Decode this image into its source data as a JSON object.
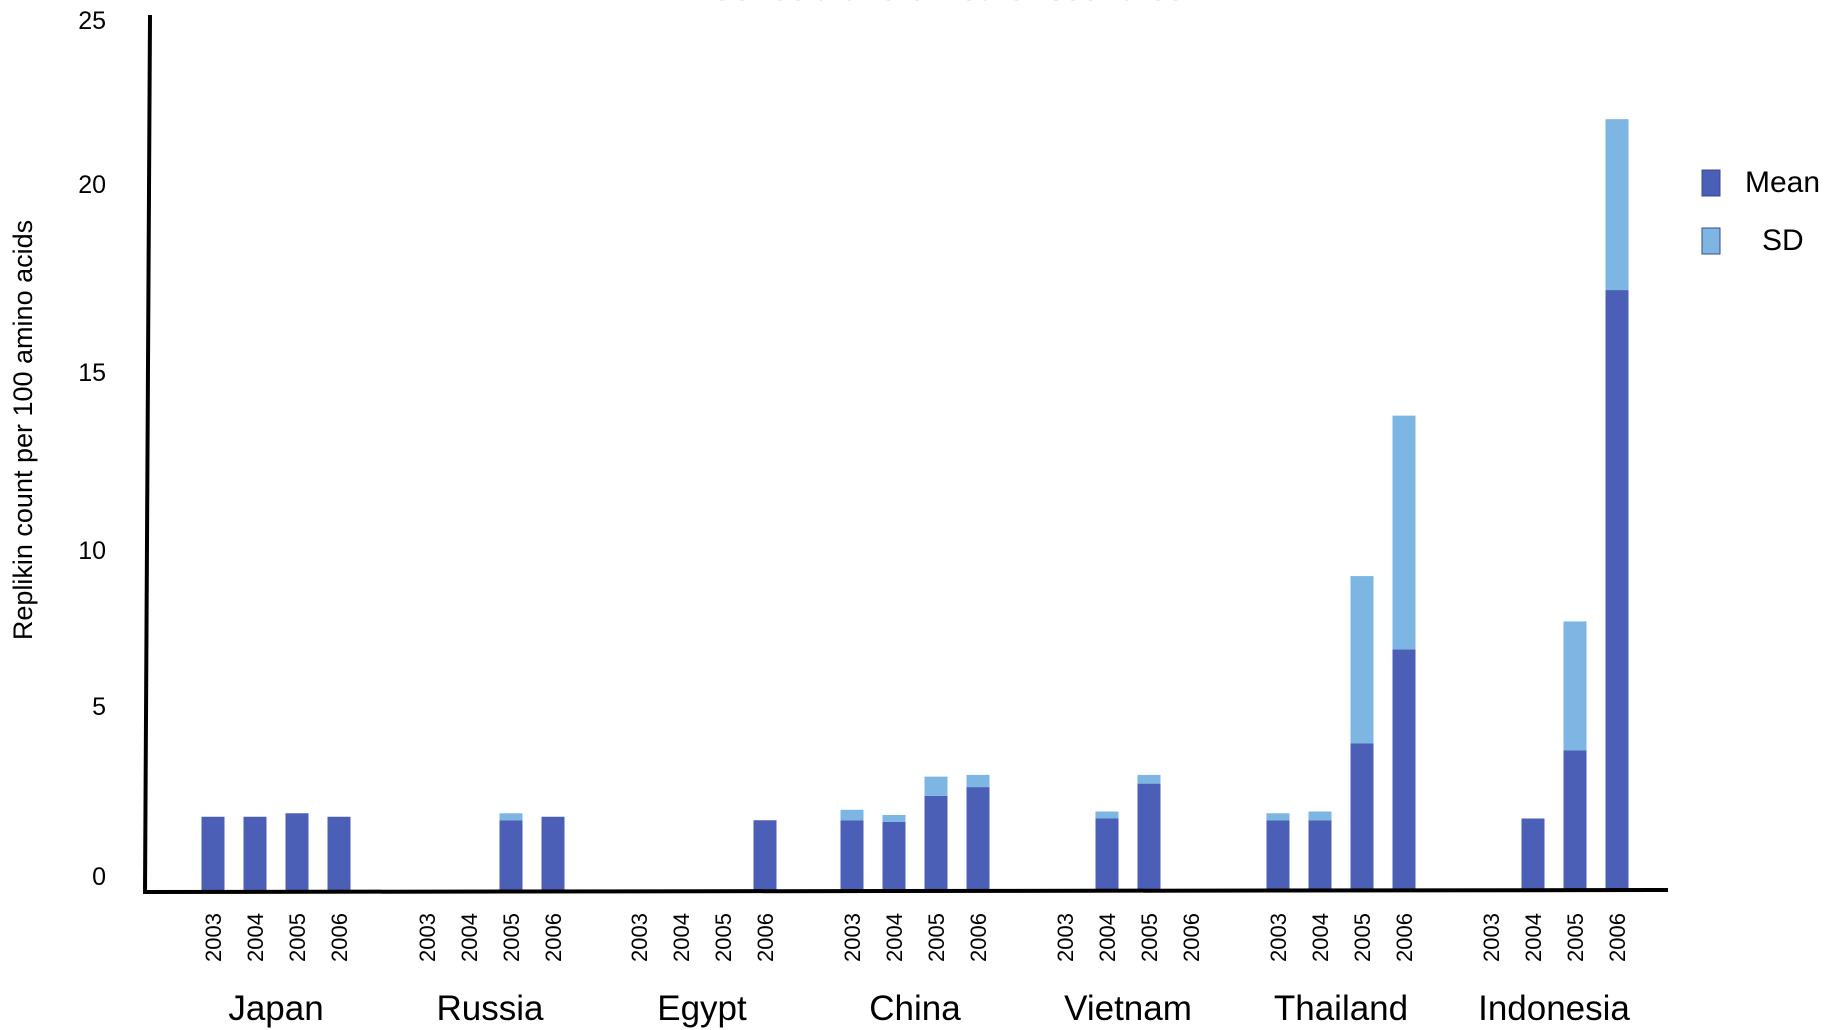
{
  "chart_data": {
    "type": "bar",
    "stacked": true,
    "title": "in Indonesia and six other countries",
    "ylabel": "Replikin count per 100 amino acids",
    "xlabel": "",
    "ylim": [
      0,
      25
    ],
    "yticks": [
      0,
      5,
      10,
      15,
      20,
      25
    ],
    "grid": false,
    "legend_position": "right",
    "colors": {
      "Mean": "#4a5fb5",
      "SD": "#7eb6e3"
    },
    "groups": [
      {
        "name": "Japan",
        "years": [
          "2003",
          "2004",
          "2005",
          "2006"
        ],
        "mean": [
          2.1,
          2.1,
          2.2,
          2.1
        ],
        "sd": [
          0,
          0,
          0,
          0
        ]
      },
      {
        "name": "Russia",
        "years": [
          "2003",
          "2004",
          "2005",
          "2006"
        ],
        "mean": [
          0,
          0,
          2.0,
          2.1
        ],
        "sd": [
          0,
          0,
          0.2,
          0
        ]
      },
      {
        "name": "Egypt",
        "years": [
          "2003",
          "2004",
          "2005",
          "2006"
        ],
        "mean": [
          0,
          0,
          0,
          2.0
        ],
        "sd": [
          0,
          0,
          0,
          0
        ]
      },
      {
        "name": "China",
        "years": [
          "2003",
          "2004",
          "2005",
          "2006"
        ],
        "mean": [
          2.0,
          1.95,
          2.7,
          2.95
        ],
        "sd": [
          0.3,
          0.2,
          0.55,
          0.35
        ]
      },
      {
        "name": "Vietnam",
        "years": [
          "2003",
          "2004",
          "2005",
          "2006"
        ],
        "mean": [
          0,
          2.05,
          3.05,
          0
        ],
        "sd": [
          0,
          0.2,
          0.25,
          0
        ]
      },
      {
        "name": "Thailand",
        "years": [
          "2003",
          "2004",
          "2005",
          "2006"
        ],
        "mean": [
          2.0,
          2.0,
          4.2,
          6.9
        ],
        "sd": [
          0.2,
          0.25,
          4.8,
          6.7
        ]
      },
      {
        "name": "Indonesia",
        "years": [
          "2003",
          "2004",
          "2005",
          "2006"
        ],
        "mean": [
          0,
          2.05,
          4.0,
          17.2
        ],
        "sd": [
          0,
          0,
          3.7,
          4.9
        ]
      }
    ],
    "series": [
      {
        "name": "Mean"
      },
      {
        "name": "SD"
      }
    ]
  }
}
